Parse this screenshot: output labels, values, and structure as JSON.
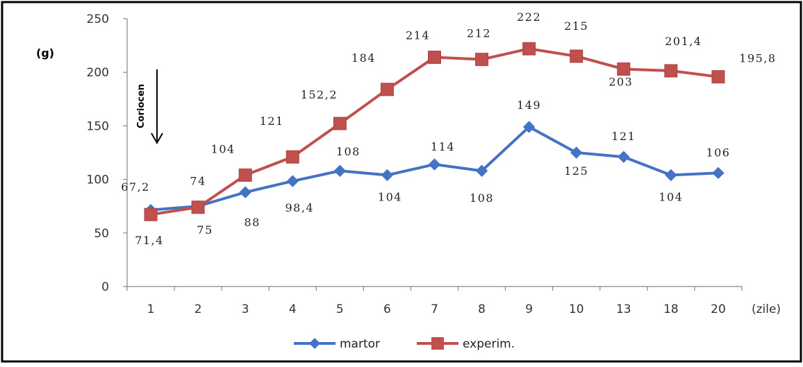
{
  "chart_data": {
    "type": "line",
    "categories": [
      "1",
      "2",
      "3",
      "4",
      "5",
      "6",
      "7",
      "8",
      "9",
      "10",
      "13",
      "18",
      "20"
    ],
    "xlabel": "(zile)",
    "ylabel": "(g)",
    "ylim": [
      0,
      250
    ],
    "yticks": [
      "0",
      "50",
      "100",
      "150",
      "200",
      "250"
    ],
    "grid": false,
    "legend_position": "bottom",
    "annotation": "Coriocen",
    "series": [
      {
        "name": "martor",
        "color": "#4472c4",
        "marker": "diamond",
        "values": [
          71.4,
          75,
          88,
          98.4,
          108,
          104,
          114,
          108,
          149,
          125,
          121,
          104,
          106
        ],
        "labels": [
          "71,4",
          "75",
          "88",
          "98,4",
          "108",
          "104",
          "114",
          "108",
          "149",
          "125",
          "121",
          "104",
          "106"
        ]
      },
      {
        "name": "experim.",
        "color": "#c0504d",
        "marker": "square",
        "values": [
          67.2,
          74,
          104,
          121,
          152.2,
          184,
          214,
          212,
          222,
          215,
          203,
          201.4,
          195.8
        ],
        "labels": [
          "67,2",
          "74",
          "104",
          "121",
          "152,2",
          "184",
          "214",
          "212",
          "222",
          "215",
          "203",
          "201,4",
          "195,8"
        ]
      }
    ]
  }
}
